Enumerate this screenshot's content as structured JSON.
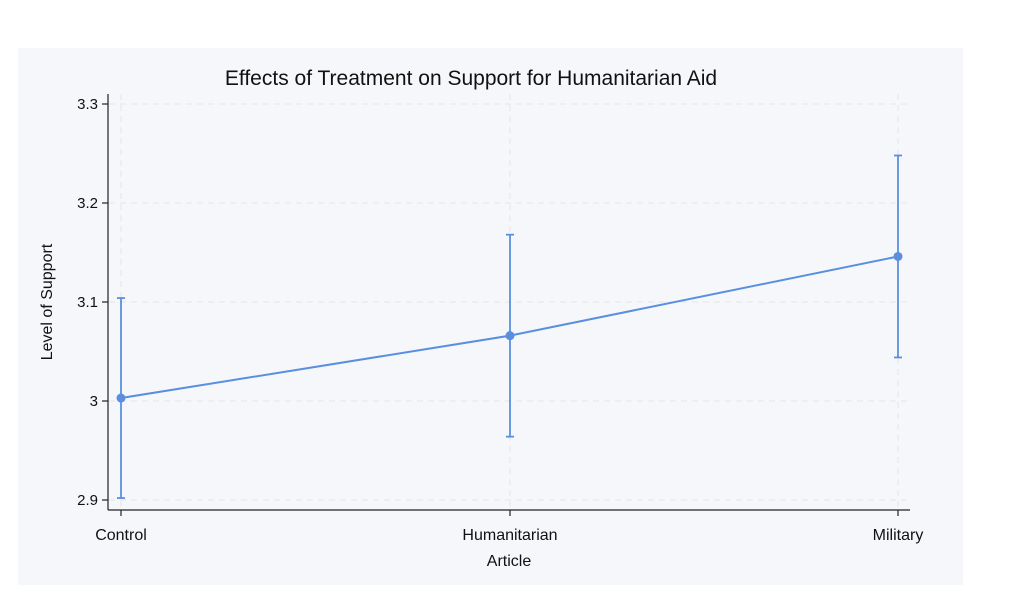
{
  "chart_data": {
    "type": "line",
    "title": "Effects of Treatment on Support for Humanitarian Aid",
    "xlabel": "Article",
    "ylabel": "Level of Support",
    "categories": [
      "Control",
      "Humanitarian",
      "Military"
    ],
    "series": [
      {
        "values": [
          3.003,
          3.066,
          3.146
        ],
        "ci_lower": [
          2.902,
          2.964,
          3.044
        ],
        "ci_upper": [
          3.104,
          3.168,
          3.248
        ],
        "color": "#5a8fe0"
      }
    ],
    "ylim": [
      2.89,
      3.31
    ],
    "yticks": [
      2.9,
      3,
      3.1,
      3.2,
      3.3
    ],
    "ytick_labels": [
      "2.9",
      "3",
      "3.1",
      "3.2",
      "3.3"
    ],
    "grid": true
  }
}
